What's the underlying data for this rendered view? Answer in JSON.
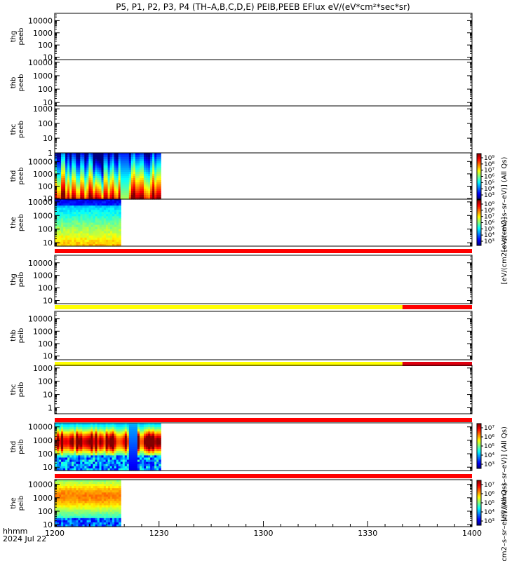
{
  "title": "P5, P1, P2, P3, P4 (TH–A,B,C,D,E) PEIB,PEEB EFlux eV/(eV*cm²*sec*sr)",
  "colors": {
    "flag_red": "#ff0000",
    "flag_yellow": "#ffff00",
    "flag_darkred": "#e00010"
  },
  "chart_data": {
    "type": "heatmap",
    "x_axis": {
      "ticks": [
        "1200",
        "1230",
        "1300",
        "1330",
        "1400"
      ],
      "tick_minutes": [
        0,
        30,
        60,
        90,
        120
      ],
      "range_minutes": [
        0,
        120
      ],
      "label_line1": "hhmm",
      "label_line2": "2024 Jul 22"
    },
    "panels": [
      {
        "id": "thg-peeb",
        "label": [
          "thg",
          "peeb"
        ],
        "yticks": [
          "10000",
          "1000",
          "100",
          "10"
        ],
        "ylog": [
          0.8,
          4.6
        ],
        "data": null
      },
      {
        "id": "thb-peeb",
        "label": [
          "thb",
          "peeb"
        ],
        "yticks": [
          "10000",
          "1000",
          "100",
          "10"
        ],
        "ylog": [
          0.75,
          4.2
        ],
        "data": null
      },
      {
        "id": "thc-peeb",
        "label": [
          "thc",
          "peeb"
        ],
        "yticks": [
          "1000",
          "100",
          "10",
          "1"
        ],
        "ylog": [
          0,
          3.2
        ],
        "data": null
      },
      {
        "id": "thd-peeb",
        "label": [
          "thd",
          "peeb"
        ],
        "yticks": [
          "10000",
          "1000",
          "100",
          "10"
        ],
        "ylog": [
          0.95,
          4.7
        ],
        "data": {
          "x_range_minutes": [
            0,
            30.5
          ],
          "pattern": "electron"
        }
      },
      {
        "id": "the-peeb",
        "label": [
          "the",
          "peeb"
        ],
        "yticks": [
          "10000",
          "1000",
          "100",
          "10"
        ],
        "ylog": [
          0.75,
          4.2
        ],
        "data": {
          "x_range_minutes": [
            0,
            19
          ],
          "pattern": "electron_e"
        },
        "flag_after": [
          {
            "color": "red",
            "x_range_minutes": [
              0,
              120
            ]
          }
        ]
      },
      {
        "id": "thg-peib",
        "label": [
          "thg",
          "peib"
        ],
        "yticks": [
          "10000",
          "1000",
          "100",
          "10"
        ],
        "ylog": [
          0.75,
          4.6
        ],
        "data": null,
        "flag_after": [
          {
            "color": "yellow",
            "x_range_minutes": [
              0,
              100
            ]
          },
          {
            "color": "red",
            "x_range_minutes": [
              100,
              120
            ]
          }
        ]
      },
      {
        "id": "thb-peib",
        "label": [
          "thb",
          "peib"
        ],
        "yticks": [
          "10000",
          "1000",
          "100",
          "10"
        ],
        "ylog": [
          0.7,
          4.6
        ],
        "data": null,
        "flag_after": [
          {
            "color": "yellow",
            "x_range_minutes": [
              0,
              100
            ]
          },
          {
            "color": "darkred",
            "x_range_minutes": [
              100,
              120
            ]
          }
        ]
      },
      {
        "id": "thc-peib",
        "label": [
          "thc",
          "peib"
        ],
        "yticks": [
          "1000",
          "100",
          "10",
          "1"
        ],
        "ylog": [
          -0.45,
          3.2
        ],
        "data": null,
        "flag_after": [
          {
            "color": "red",
            "x_range_minutes": [
              0,
              120
            ]
          }
        ]
      },
      {
        "id": "thd-peib",
        "label": [
          "thd",
          "peib"
        ],
        "yticks": [
          "10000",
          "1000",
          "100",
          "10"
        ],
        "ylog": [
          0.75,
          4.3
        ],
        "data": {
          "x_range_minutes": [
            0,
            30.5
          ],
          "pattern": "ion"
        },
        "flag_after": [
          {
            "color": "red",
            "x_range_minutes": [
              0,
              120
            ]
          }
        ]
      },
      {
        "id": "the-peib",
        "label": [
          "the",
          "peib"
        ],
        "yticks": [
          "10000",
          "1000",
          "100",
          "10"
        ],
        "ylog": [
          0.85,
          4.35
        ],
        "data": {
          "x_range_minutes": [
            0,
            19
          ],
          "pattern": "ion_e"
        }
      }
    ],
    "colorbars": [
      {
        "id": "cb-peeb-1",
        "ticks": [
          "10⁹",
          "10⁸",
          "10⁷",
          "10⁶",
          "10⁵",
          "10⁴",
          "10³"
        ],
        "title": "[eV/(cm2–s–sr–eV)] (All Qs)"
      },
      {
        "id": "cb-peeb-2",
        "ticks": [
          "10⁹",
          "10⁸",
          "10⁷",
          "10⁶",
          "10⁵",
          "10⁴",
          "10³"
        ],
        "title": "[eV/(cm2–s–sr–eV)]"
      },
      {
        "id": "cb-peib-1",
        "ticks": [
          "10⁷",
          "10⁶",
          "10⁵",
          "10⁴",
          "10³"
        ],
        "title": "[eV/(cm2–s–sr–eV)] (All Qs)"
      },
      {
        "id": "cb-peib-2",
        "ticks": [
          "10⁷",
          "10⁶",
          "10⁵",
          "10⁴",
          "10³"
        ],
        "title": "[eV/(cm2–s–sr–eV)] (All Qs)"
      }
    ]
  }
}
